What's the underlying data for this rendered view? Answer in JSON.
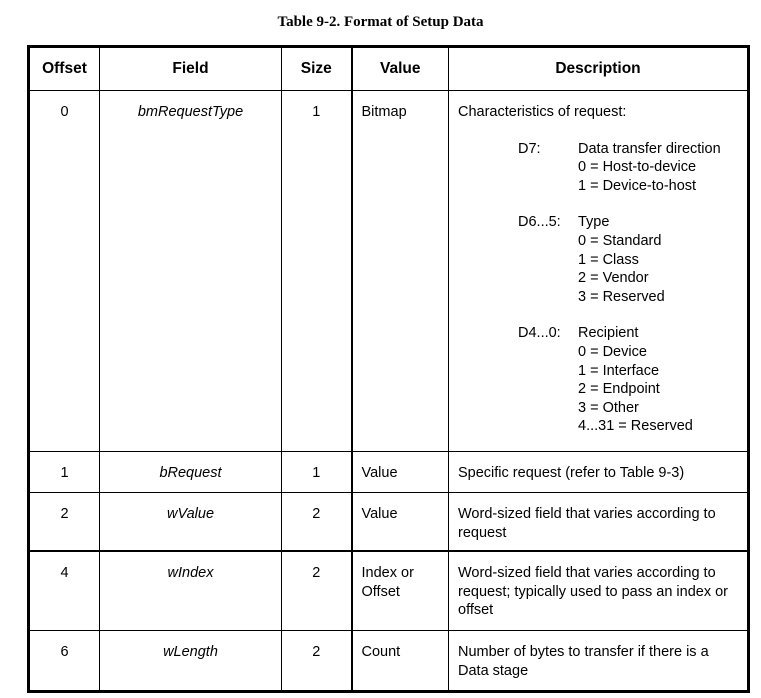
{
  "title": "Table 9-2.  Format of Setup Data",
  "headers": [
    "Offset",
    "Field",
    "Size",
    "Value",
    "Description"
  ],
  "rows": [
    {
      "offset": "0",
      "field": "bmRequestType",
      "size": "1",
      "value": "Bitmap",
      "description": "Characteristics of request:",
      "groups": [
        {
          "label": "D7:",
          "lines": [
            "Data transfer direction",
            "0 = Host-to-device",
            "1 = Device-to-host"
          ]
        },
        {
          "label": "D6...5:",
          "lines": [
            "Type",
            "0 = Standard",
            "1 = Class",
            "2 = Vendor",
            "3 = Reserved"
          ]
        },
        {
          "label": "D4...0:",
          "lines": [
            "Recipient",
            "0 = Device",
            "1 = Interface",
            "2 = Endpoint",
            "3 = Other",
            "4...31 = Reserved"
          ]
        }
      ]
    },
    {
      "offset": "1",
      "field": "bRequest",
      "size": "1",
      "value": "Value",
      "description": "Specific request (refer to Table 9-3)"
    },
    {
      "offset": "2",
      "field": "wValue",
      "size": "2",
      "value": "Value",
      "description": "Word-sized field that varies according to request"
    },
    {
      "offset": "4",
      "field": "wIndex",
      "size": "2",
      "value": "Index or Offset",
      "description": "Word-sized field that varies according to request; typically used to pass an index or offset"
    },
    {
      "offset": "6",
      "field": "wLength",
      "size": "2",
      "value": "Count",
      "description": "Number of bytes to transfer if there is a Data stage"
    }
  ]
}
